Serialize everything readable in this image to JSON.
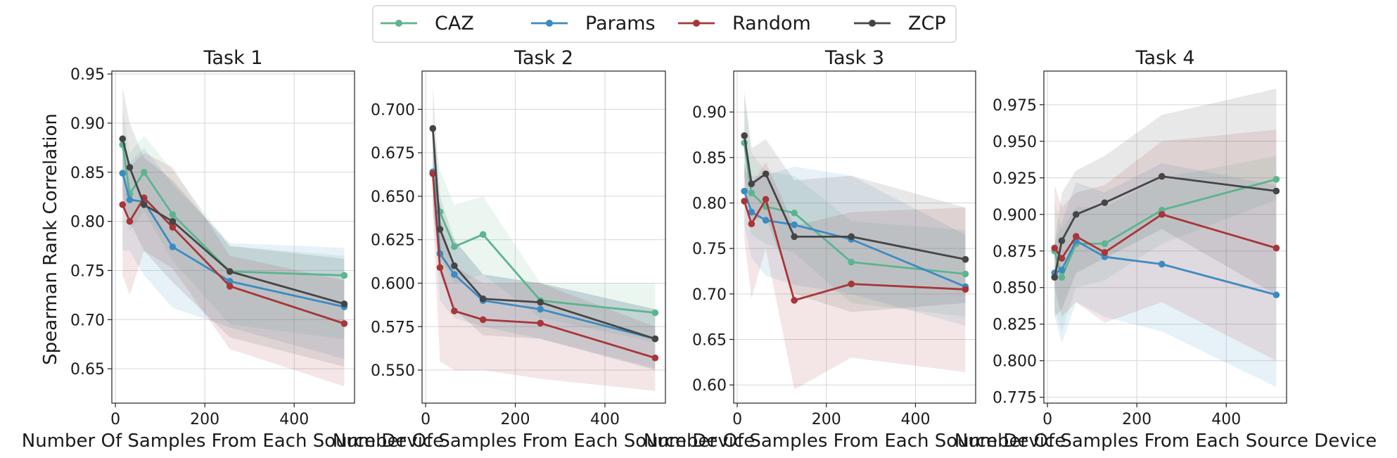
{
  "colors": {
    "CAZ": "#5bb58f",
    "Params": "#3b8bc2",
    "Random": "#a83538",
    "ZCP": "#454545"
  },
  "legend": {
    "placement": "top-center",
    "entries": [
      "CAZ",
      "Params",
      "Random",
      "ZCP"
    ]
  },
  "ylabel": "Spearman Rank Correlation",
  "chart_data": [
    {
      "type": "line",
      "title": "Task 1",
      "xlabel": "Number Of Samples From Each Source Device",
      "ylabel": "Spearman Rank Correlation",
      "x": [
        16,
        32,
        64,
        128,
        256,
        512
      ],
      "xlim": [
        -8,
        535
      ],
      "ylim": [
        0.615,
        0.953
      ],
      "xticks": [
        0,
        200,
        400
      ],
      "yticks": [
        0.65,
        0.7,
        0.75,
        0.8,
        0.85,
        0.9,
        0.95
      ],
      "yticklabels": [
        "0.65",
        "0.70",
        "0.75",
        "0.80",
        "0.85",
        "0.90",
        "0.95"
      ],
      "grid": true,
      "series": [
        {
          "name": "CAZ",
          "values": [
            0.878,
            0.828,
            0.85,
            0.807,
            0.749,
            0.745
          ],
          "lower": [
            0.83,
            0.79,
            0.81,
            0.76,
            0.695,
            0.68
          ],
          "upper": [
            0.915,
            0.87,
            0.887,
            0.852,
            0.775,
            0.765
          ]
        },
        {
          "name": "Params",
          "values": [
            0.849,
            0.822,
            0.82,
            0.774,
            0.739,
            0.713
          ],
          "lower": [
            0.77,
            0.77,
            0.745,
            0.712,
            0.692,
            0.66
          ],
          "upper": [
            0.875,
            0.86,
            0.875,
            0.838,
            0.778,
            0.773
          ]
        },
        {
          "name": "Random",
          "values": [
            0.817,
            0.8,
            0.824,
            0.794,
            0.734,
            0.696
          ],
          "lower": [
            0.745,
            0.725,
            0.77,
            0.752,
            0.67,
            0.632
          ],
          "upper": [
            0.88,
            0.855,
            0.87,
            0.855,
            0.765,
            0.74
          ]
        },
        {
          "name": "ZCP",
          "values": [
            0.884,
            0.855,
            0.817,
            0.8,
            0.749,
            0.716
          ],
          "lower": [
            0.82,
            0.8,
            0.77,
            0.738,
            0.682,
            0.652
          ],
          "upper": [
            0.936,
            0.9,
            0.865,
            0.842,
            0.775,
            0.762
          ]
        }
      ]
    },
    {
      "type": "line",
      "title": "Task 2",
      "xlabel": "Number Of Samples From Each Source Device",
      "x": [
        16,
        32,
        64,
        128,
        256,
        512
      ],
      "xlim": [
        -8,
        535
      ],
      "ylim": [
        0.531,
        0.722
      ],
      "xticks": [
        0,
        200,
        400
      ],
      "yticks": [
        0.55,
        0.575,
        0.6,
        0.625,
        0.65,
        0.675,
        0.7
      ],
      "yticklabels": [
        "0.550",
        "0.575",
        "0.600",
        "0.625",
        "0.650",
        "0.675",
        "0.700"
      ],
      "grid": true,
      "series": [
        {
          "name": "CAZ",
          "values": [
            0.664,
            0.641,
            0.621,
            0.628,
            0.59,
            0.583
          ],
          "lower": [
            0.64,
            0.615,
            0.6,
            0.605,
            0.58,
            0.566
          ],
          "upper": [
            0.69,
            0.665,
            0.645,
            0.65,
            0.6,
            0.6
          ]
        },
        {
          "name": "Params",
          "values": [
            0.664,
            0.617,
            0.605,
            0.59,
            0.585,
            0.568
          ],
          "lower": [
            0.645,
            0.59,
            0.58,
            0.575,
            0.568,
            0.551
          ],
          "upper": [
            0.69,
            0.64,
            0.625,
            0.605,
            0.6,
            0.585
          ]
        },
        {
          "name": "Random",
          "values": [
            0.663,
            0.609,
            0.584,
            0.579,
            0.577,
            0.557
          ],
          "lower": [
            0.64,
            0.555,
            0.55,
            0.55,
            0.545,
            0.538
          ],
          "upper": [
            0.69,
            0.635,
            0.61,
            0.6,
            0.6,
            0.575
          ]
        },
        {
          "name": "ZCP",
          "values": [
            0.689,
            0.631,
            0.61,
            0.591,
            0.589,
            0.568
          ],
          "lower": [
            0.665,
            0.605,
            0.585,
            0.57,
            0.568,
            0.55
          ],
          "upper": [
            0.713,
            0.65,
            0.625,
            0.605,
            0.6,
            0.585
          ]
        }
      ]
    },
    {
      "type": "line",
      "title": "Task 3",
      "xlabel": "Number Of Samples From Each Source Device",
      "x": [
        16,
        32,
        64,
        128,
        256,
        512
      ],
      "xlim": [
        -8,
        535
      ],
      "ylim": [
        0.58,
        0.945
      ],
      "xticks": [
        0,
        200,
        400
      ],
      "yticks": [
        0.6,
        0.65,
        0.7,
        0.75,
        0.8,
        0.85,
        0.9
      ],
      "yticklabels": [
        "0.60",
        "0.65",
        "0.70",
        "0.75",
        "0.80",
        "0.85",
        "0.90"
      ],
      "grid": true,
      "series": [
        {
          "name": "CAZ",
          "values": [
            0.866,
            0.811,
            0.796,
            0.789,
            0.735,
            0.722
          ],
          "lower": [
            0.82,
            0.765,
            0.755,
            0.745,
            0.69,
            0.675
          ],
          "upper": [
            0.925,
            0.855,
            0.835,
            0.83,
            0.78,
            0.77
          ]
        },
        {
          "name": "Params",
          "values": [
            0.813,
            0.79,
            0.781,
            0.776,
            0.76,
            0.708
          ],
          "lower": [
            0.775,
            0.74,
            0.72,
            0.71,
            0.7,
            0.665
          ],
          "upper": [
            0.845,
            0.83,
            0.83,
            0.84,
            0.83,
            0.765
          ]
        },
        {
          "name": "Random",
          "values": [
            0.802,
            0.777,
            0.804,
            0.693,
            0.711,
            0.705
          ],
          "lower": [
            0.76,
            0.695,
            0.75,
            0.595,
            0.63,
            0.614
          ],
          "upper": [
            0.84,
            0.82,
            0.845,
            0.775,
            0.79,
            0.795
          ]
        },
        {
          "name": "ZCP",
          "values": [
            0.874,
            0.821,
            0.832,
            0.763,
            0.763,
            0.738
          ],
          "lower": [
            0.83,
            0.78,
            0.785,
            0.7,
            0.68,
            0.69
          ],
          "upper": [
            0.92,
            0.86,
            0.87,
            0.825,
            0.83,
            0.795
          ]
        }
      ]
    },
    {
      "type": "line",
      "title": "Task 4",
      "xlabel": "Number Of Samples From Each Source Device",
      "x": [
        16,
        32,
        64,
        128,
        256,
        512
      ],
      "xlim": [
        -8,
        535
      ],
      "ylim": [
        0.771,
        0.998
      ],
      "xticks": [
        0,
        200,
        400
      ],
      "yticks": [
        0.775,
        0.8,
        0.825,
        0.85,
        0.875,
        0.9,
        0.925,
        0.95,
        0.975
      ],
      "yticklabels": [
        "0.775",
        "0.800",
        "0.825",
        "0.850",
        "0.875",
        "0.900",
        "0.925",
        "0.950",
        "0.975"
      ],
      "grid": true,
      "series": [
        {
          "name": "CAZ",
          "values": [
            0.875,
            0.857,
            0.88,
            0.88,
            0.903,
            0.924
          ],
          "lower": [
            0.835,
            0.82,
            0.85,
            0.855,
            0.88,
            0.91
          ],
          "upper": [
            0.91,
            0.89,
            0.905,
            0.905,
            0.925,
            0.94
          ]
        },
        {
          "name": "Params",
          "values": [
            0.86,
            0.862,
            0.882,
            0.871,
            0.866,
            0.845
          ],
          "lower": [
            0.83,
            0.812,
            0.84,
            0.83,
            0.82,
            0.782
          ],
          "upper": [
            0.88,
            0.895,
            0.922,
            0.915,
            0.935,
            0.92
          ]
        },
        {
          "name": "Random",
          "values": [
            0.877,
            0.87,
            0.885,
            0.874,
            0.9,
            0.877
          ],
          "lower": [
            0.85,
            0.83,
            0.84,
            0.826,
            0.84,
            0.8
          ],
          "upper": [
            0.92,
            0.905,
            0.915,
            0.92,
            0.95,
            0.958
          ]
        },
        {
          "name": "ZCP",
          "values": [
            0.857,
            0.882,
            0.9,
            0.908,
            0.926,
            0.916
          ],
          "lower": [
            0.83,
            0.835,
            0.86,
            0.87,
            0.89,
            0.845
          ],
          "upper": [
            0.88,
            0.915,
            0.93,
            0.94,
            0.968,
            0.986
          ]
        }
      ]
    }
  ]
}
